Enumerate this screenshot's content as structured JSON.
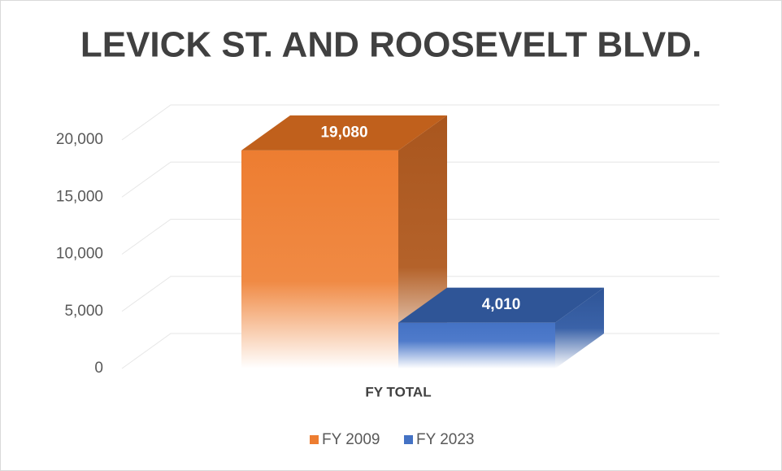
{
  "chart_data": {
    "type": "bar3d",
    "title": "LEVICK ST. AND ROOSEVELT BLVD.",
    "categories": [
      "FY TOTAL"
    ],
    "series": [
      {
        "name": "FY 2009",
        "color": "#ed7d31",
        "values": [
          19080
        ],
        "value_labels": [
          "19,080"
        ]
      },
      {
        "name": "FY 2023",
        "color": "#4472c4",
        "values": [
          4010
        ],
        "value_labels": [
          "4,010"
        ]
      }
    ],
    "ylim": [
      0,
      20000
    ],
    "yticks": [
      0,
      {
        "value": 5000,
        "label": "5,000"
      },
      {
        "value": 10000,
        "label": "10,000"
      },
      {
        "value": 15000,
        "label": "15,000"
      },
      {
        "value": 20000,
        "label": "20,000"
      }
    ],
    "grid": true,
    "legend": "bottom"
  }
}
